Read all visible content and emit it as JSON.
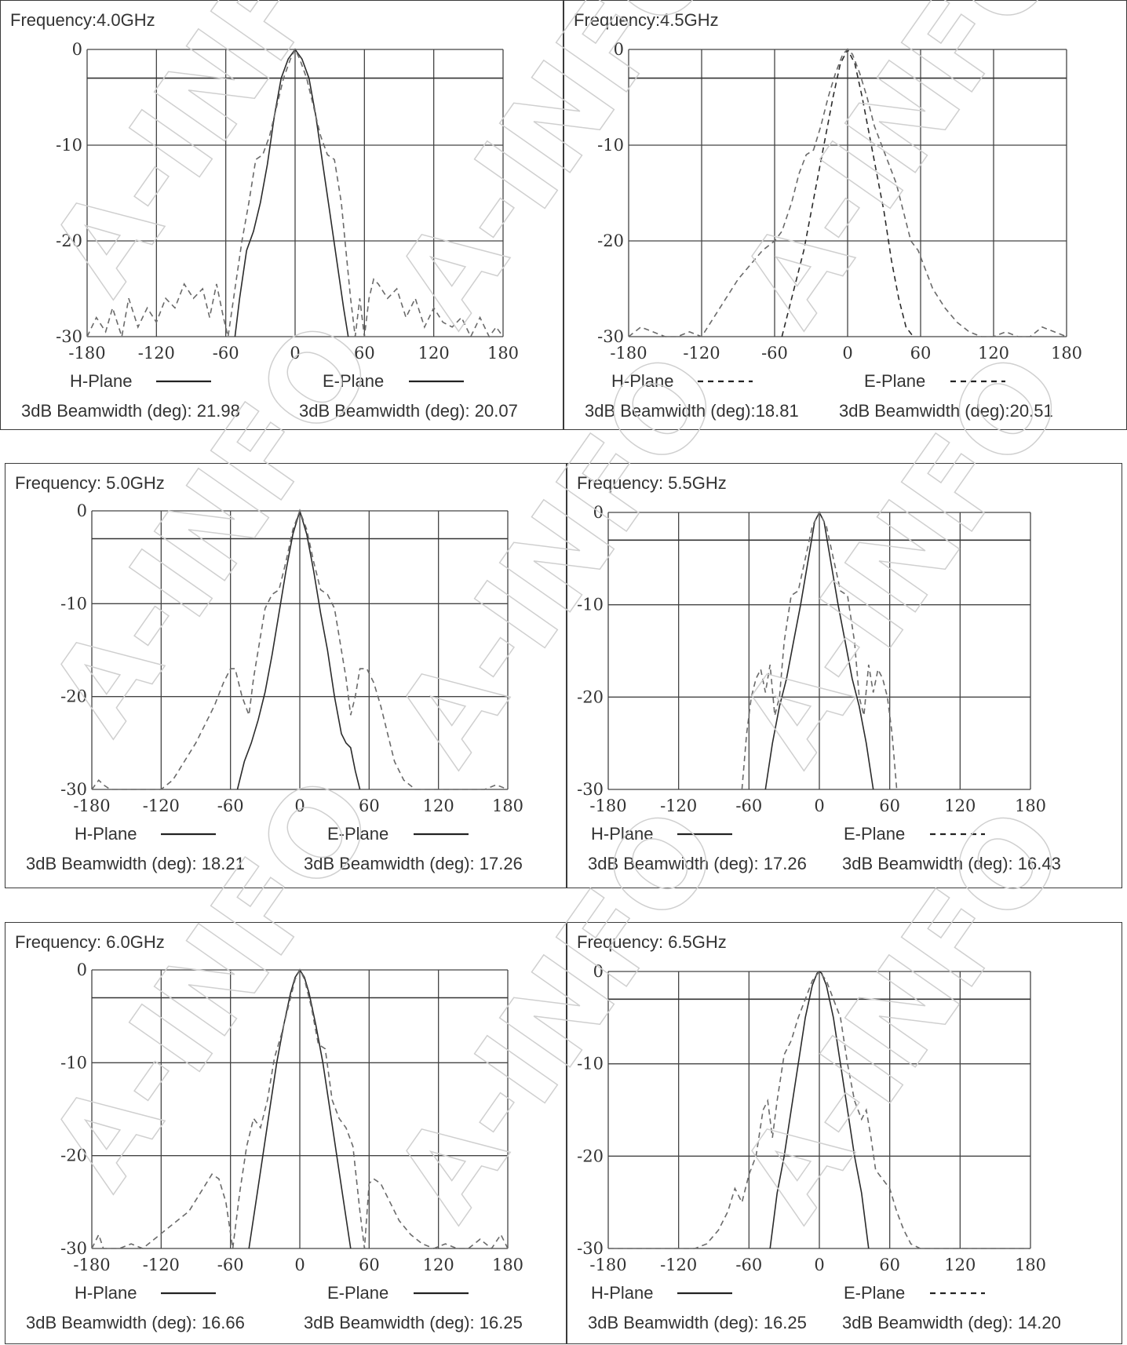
{
  "watermark_text": "A-INFO",
  "panels": [
    {
      "frequency": "Frequency:4.0GHz",
      "h_plane_label": "H-Plane",
      "e_plane_label": "E-Plane",
      "h_plane_style": "solid",
      "e_plane_style": "solid",
      "h_beamwidth": "3dB Beamwidth (deg): 21.98",
      "e_beamwidth": "3dB Beamwidth (deg): 20.07"
    },
    {
      "frequency": "Frequency:4.5GHz",
      "h_plane_label": "H-Plane",
      "e_plane_label": "E-Plane",
      "h_plane_style": "dashed",
      "e_plane_style": "dashed",
      "h_beamwidth": "3dB Beamwidth (deg):18.81",
      "e_beamwidth": "3dB Beamwidth (deg):20.51"
    },
    {
      "frequency": "Frequency: 5.0GHz",
      "h_plane_label": "H-Plane",
      "e_plane_label": "E-Plane",
      "h_plane_style": "solid",
      "e_plane_style": "solid",
      "h_beamwidth": "3dB Beamwidth (deg): 18.21",
      "e_beamwidth": "3dB Beamwidth (deg): 17.26"
    },
    {
      "frequency": "Frequency: 5.5GHz",
      "h_plane_label": "H-Plane",
      "e_plane_label": "E-Plane",
      "h_plane_style": "solid",
      "e_plane_style": "dashed",
      "h_beamwidth": "3dB Beamwidth (deg): 17.26",
      "e_beamwidth": "3dB Beamwidth (deg): 16.43"
    },
    {
      "frequency": "Frequency: 6.0GHz",
      "h_plane_label": "H-Plane",
      "e_plane_label": "E-Plane",
      "h_plane_style": "solid",
      "e_plane_style": "solid",
      "h_beamwidth": "3dB Beamwidth (deg): 16.66",
      "e_beamwidth": "3dB Beamwidth (deg): 16.25"
    },
    {
      "frequency": "Frequency: 6.5GHz",
      "h_plane_label": "H-Plane",
      "e_plane_label": "E-Plane",
      "h_plane_style": "solid",
      "e_plane_style": "dashed",
      "h_beamwidth": "3dB Beamwidth (deg): 16.25",
      "e_beamwidth": "3dB Beamwidth (deg): 14.20"
    }
  ],
  "chart_data": [
    {
      "type": "line",
      "title": "Frequency:4.0GHz",
      "xlim": [
        -180,
        180
      ],
      "ylim": [
        -30,
        0
      ],
      "xticks": [
        -180,
        -120,
        -60,
        0,
        60,
        120,
        180
      ],
      "yticks": [
        0,
        -10,
        -20,
        -30
      ],
      "reference_line": -3,
      "grid": true,
      "series": [
        {
          "style": "solid",
          "x": [
            -52,
            -48,
            -42,
            -36,
            -30,
            -24,
            -18,
            -12,
            -6,
            0,
            6,
            12,
            18,
            24,
            30,
            36,
            42,
            46
          ],
          "y": [
            -30,
            -26,
            -21,
            -19,
            -16,
            -12,
            -7,
            -3,
            -1,
            0,
            -1,
            -3,
            -7,
            -12,
            -17,
            -22,
            -27,
            -30
          ]
        },
        {
          "style": "dashed",
          "x": [
            -180,
            -172,
            -164,
            -158,
            -150,
            -144,
            -136,
            -128,
            -120,
            -112,
            -104,
            -96,
            -88,
            -80,
            -74,
            -68,
            -62,
            -58,
            -52,
            -46,
            -40,
            -34,
            -28,
            -22,
            -16,
            -10,
            -4,
            0,
            4,
            10,
            16,
            22,
            28,
            34,
            40,
            44,
            48,
            52,
            56,
            60,
            64,
            68,
            72,
            80,
            88,
            96,
            104,
            112,
            120,
            128,
            136,
            144,
            152,
            160,
            168,
            174,
            180
          ],
          "y": [
            -30,
            -28,
            -29.5,
            -27,
            -30,
            -26,
            -29,
            -27,
            -28.5,
            -26,
            -27,
            -24.5,
            -26,
            -25,
            -28,
            -24.5,
            -28,
            -30,
            -25,
            -20,
            -16,
            -11.5,
            -11,
            -9,
            -6,
            -3,
            -1,
            0,
            -1,
            -3,
            -6,
            -9,
            -11,
            -11.5,
            -16,
            -21,
            -26,
            -30,
            -26,
            -30,
            -26,
            -24,
            -24.5,
            -26,
            -25,
            -28,
            -26,
            -29,
            -27,
            -28.5,
            -29,
            -28,
            -30,
            -28,
            -30,
            -29,
            -30
          ]
        }
      ]
    },
    {
      "type": "line",
      "title": "Frequency:4.5GHz",
      "xlim": [
        -180,
        180
      ],
      "ylim": [
        -30,
        0
      ],
      "xticks": [
        -180,
        -120,
        -60,
        0,
        60,
        120,
        180
      ],
      "yticks": [
        0,
        -10,
        -20,
        -30
      ],
      "reference_line": -3,
      "grid": true,
      "series": [
        {
          "style": "dashed",
          "x": [
            -54,
            -48,
            -42,
            -36,
            -30,
            -24,
            -18,
            -12,
            -6,
            0,
            6,
            12,
            18,
            24,
            30,
            36,
            42,
            48,
            54
          ],
          "y": [
            -30,
            -27,
            -24,
            -21,
            -17,
            -13,
            -9,
            -5,
            -1.5,
            0,
            -1.5,
            -5,
            -9,
            -13,
            -17,
            -22,
            -26,
            -29,
            -30
          ]
        },
        {
          "style": "dashed",
          "x": [
            -180,
            -170,
            -160,
            -150,
            -140,
            -130,
            -120,
            -110,
            -100,
            -90,
            -80,
            -70,
            -60,
            -54,
            -46,
            -40,
            -34,
            -28,
            -22,
            -16,
            -10,
            -4,
            0,
            4,
            10,
            16,
            22,
            28,
            34,
            40,
            46,
            52,
            58,
            64,
            70,
            80,
            90,
            100,
            110,
            120,
            130,
            140,
            150,
            160,
            170,
            180
          ],
          "y": [
            -30,
            -29,
            -29.5,
            -30,
            -30,
            -29.5,
            -30,
            -28,
            -26,
            -24,
            -22.5,
            -21,
            -20,
            -19,
            -16,
            -13,
            -11,
            -10.5,
            -8,
            -5,
            -2.5,
            -0.5,
            0,
            -0.5,
            -2.5,
            -5,
            -8,
            -10,
            -12,
            -14,
            -17,
            -20,
            -21,
            -23,
            -25,
            -27,
            -28.5,
            -29.5,
            -30,
            -30,
            -29.5,
            -30,
            -30,
            -29,
            -29.5,
            -30
          ]
        }
      ]
    },
    {
      "type": "line",
      "title": "Frequency: 5.0GHz",
      "xlim": [
        -180,
        180
      ],
      "ylim": [
        -30,
        0
      ],
      "xticks": [
        -180,
        -120,
        -60,
        0,
        60,
        120,
        180
      ],
      "yticks": [
        0,
        -10,
        -20,
        -30
      ],
      "reference_line": -3,
      "grid": true,
      "series": [
        {
          "style": "solid",
          "x": [
            -54,
            -48,
            -42,
            -36,
            -30,
            -24,
            -18,
            -12,
            -6,
            0,
            6,
            12,
            18,
            24,
            30,
            36,
            40,
            44,
            48,
            52
          ],
          "y": [
            -30,
            -27,
            -25,
            -22.5,
            -19.5,
            -15.5,
            -11,
            -6.5,
            -2.5,
            0,
            -2.5,
            -6.5,
            -11,
            -15,
            -20,
            -24,
            -25,
            -25.5,
            -28,
            -30
          ]
        },
        {
          "style": "dashed",
          "x": [
            -180,
            -174,
            -170,
            -164,
            -150,
            -136,
            -120,
            -110,
            -100,
            -90,
            -82,
            -74,
            -66,
            -60,
            -56,
            -50,
            -44,
            -40,
            -36,
            -30,
            -24,
            -18,
            -12,
            -6,
            0,
            6,
            12,
            18,
            24,
            30,
            36,
            40,
            44,
            48,
            52,
            58,
            64,
            70,
            76,
            82,
            90,
            100,
            110,
            120,
            130,
            140,
            150,
            160,
            170,
            180
          ],
          "y": [
            -30,
            -29,
            -29.5,
            -30,
            -30,
            -30,
            -30,
            -29,
            -27,
            -25,
            -23,
            -21,
            -18.5,
            -17,
            -17,
            -20,
            -22,
            -18,
            -15,
            -10.5,
            -9,
            -8.5,
            -5.5,
            -2,
            0,
            -2,
            -5.5,
            -8.5,
            -9,
            -10.5,
            -15,
            -18,
            -22,
            -20,
            -17,
            -17,
            -18.5,
            -21,
            -24,
            -27,
            -29,
            -30,
            -30,
            -30,
            -30,
            -30,
            -30,
            -30,
            -29.5,
            -30
          ]
        }
      ]
    },
    {
      "type": "line",
      "title": "Frequency: 5.5GHz",
      "xlim": [
        -180,
        180
      ],
      "ylim": [
        -30,
        0
      ],
      "xticks": [
        -180,
        -120,
        -60,
        0,
        60,
        120,
        180
      ],
      "yticks": [
        0,
        -10,
        -20,
        -30
      ],
      "reference_line": -3,
      "grid": true,
      "series": [
        {
          "style": "solid",
          "x": [
            -46,
            -40,
            -34,
            -28,
            -22,
            -16,
            -10,
            -4,
            0,
            4,
            10,
            16,
            22,
            28,
            34,
            40,
            46
          ],
          "y": [
            -30,
            -25,
            -21,
            -18,
            -14,
            -10,
            -5.5,
            -1,
            0,
            -1,
            -5.5,
            -10,
            -14,
            -18,
            -21,
            -25,
            -30
          ]
        },
        {
          "style": "dashed",
          "x": [
            -66,
            -62,
            -58,
            -54,
            -50,
            -46,
            -42,
            -38,
            -34,
            -30,
            -24,
            -18,
            -12,
            -6,
            0,
            6,
            12,
            18,
            24,
            30,
            34,
            38,
            42,
            46,
            50,
            54,
            58,
            62,
            66
          ],
          "y": [
            -30,
            -24,
            -20,
            -18,
            -17,
            -19.5,
            -16.5,
            -22,
            -20,
            -14,
            -9,
            -8.5,
            -5,
            -1.5,
            0,
            -1.5,
            -5,
            -8.5,
            -9,
            -14,
            -20,
            -22,
            -16.5,
            -19.5,
            -17,
            -18,
            -20,
            -24,
            -30
          ]
        }
      ]
    },
    {
      "type": "line",
      "title": "Frequency: 6.0GHz",
      "xlim": [
        -180,
        180
      ],
      "ylim": [
        -30,
        0
      ],
      "xticks": [
        -180,
        -120,
        -60,
        0,
        60,
        120,
        180
      ],
      "yticks": [
        0,
        -10,
        -20,
        -30
      ],
      "reference_line": -3,
      "grid": true,
      "series": [
        {
          "style": "solid",
          "x": [
            -44,
            -38,
            -32,
            -26,
            -20,
            -14,
            -8,
            -4,
            0,
            4,
            8,
            14,
            20,
            26,
            32,
            38,
            44
          ],
          "y": [
            -30,
            -25,
            -20,
            -15,
            -10,
            -6,
            -2.5,
            -0.8,
            0,
            -0.8,
            -2.5,
            -6,
            -10,
            -15,
            -20,
            -25,
            -30
          ]
        },
        {
          "style": "dashed",
          "x": [
            -180,
            -174,
            -170,
            -166,
            -156,
            -146,
            -136,
            -126,
            -116,
            -106,
            -96,
            -86,
            -76,
            -70,
            -64,
            -58,
            -52,
            -46,
            -40,
            -34,
            -28,
            -22,
            -16,
            -10,
            -4,
            0,
            4,
            10,
            16,
            22,
            28,
            34,
            40,
            46,
            52,
            56,
            60,
            64,
            70,
            78,
            86,
            96,
            106,
            116,
            126,
            136,
            146,
            156,
            166,
            174,
            180
          ],
          "y": [
            -30,
            -28.5,
            -30,
            -30,
            -30,
            -29.5,
            -30,
            -29,
            -28,
            -27,
            -26,
            -24,
            -22,
            -22.5,
            -25,
            -30,
            -24,
            -19,
            -16,
            -17,
            -14,
            -9.5,
            -7,
            -4,
            -1,
            0,
            -1,
            -4,
            -8,
            -8.5,
            -14,
            -16,
            -17,
            -19,
            -26,
            -30,
            -23,
            -22.5,
            -23,
            -25,
            -27,
            -28.5,
            -29.5,
            -30,
            -29.5,
            -30,
            -30,
            -29,
            -30,
            -28.5,
            -30
          ]
        }
      ]
    },
    {
      "type": "line",
      "title": "Frequency: 6.5GHz",
      "xlim": [
        -180,
        180
      ],
      "ylim": [
        -30,
        0
      ],
      "xticks": [
        -180,
        -120,
        -60,
        0,
        60,
        120,
        180
      ],
      "yticks": [
        0,
        -10,
        -20,
        -30
      ],
      "reference_line": -3,
      "grid": true,
      "series": [
        {
          "style": "solid",
          "x": [
            -42,
            -36,
            -30,
            -24,
            -18,
            -12,
            -6,
            -2,
            0,
            2,
            6,
            12,
            18,
            24,
            30,
            36,
            42
          ],
          "y": [
            -30,
            -24,
            -20,
            -15,
            -10,
            -5,
            -1.5,
            -0.2,
            0,
            -0.2,
            -1.5,
            -5,
            -10,
            -15,
            -20,
            -24,
            -30
          ]
        },
        {
          "style": "dashed",
          "x": [
            -180,
            -160,
            -140,
            -120,
            -106,
            -96,
            -86,
            -78,
            -72,
            -66,
            -60,
            -54,
            -48,
            -44,
            -40,
            -36,
            -30,
            -24,
            -18,
            -12,
            -6,
            0,
            6,
            12,
            18,
            24,
            30,
            36,
            40,
            44,
            48,
            54,
            60,
            66,
            72,
            78,
            86,
            96,
            106,
            120,
            140,
            160,
            180
          ],
          "y": [
            -30,
            -30,
            -30,
            -30,
            -30,
            -29.5,
            -28,
            -26,
            -23.5,
            -25,
            -22,
            -20,
            -15,
            -14,
            -18,
            -14,
            -9,
            -7.5,
            -5,
            -3,
            -1,
            0,
            -1,
            -3,
            -5,
            -10,
            -14,
            -16,
            -15,
            -18,
            -21.5,
            -22.5,
            -23.5,
            -26,
            -28,
            -29.5,
            -30,
            -30,
            -30,
            -30,
            -30,
            -30,
            -30
          ]
        }
      ]
    }
  ]
}
